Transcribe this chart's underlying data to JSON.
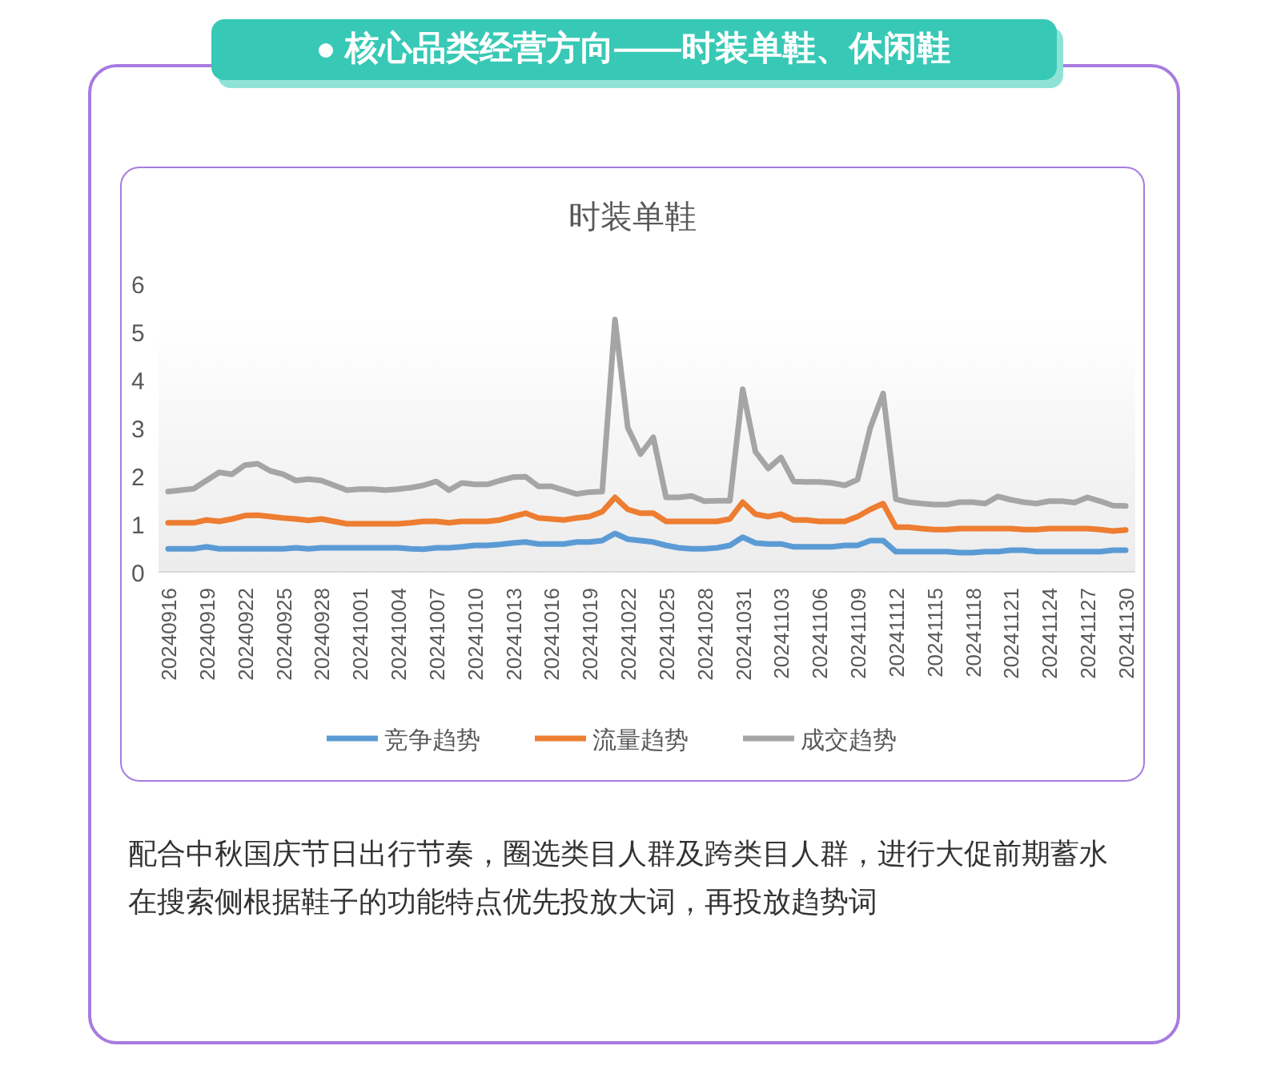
{
  "chart_data": {
    "type": "line",
    "subtitle": "核心品类经营方向——时装单鞋、休闲鞋",
    "title": "时装单鞋",
    "categories": [
      "20240916",
      null,
      null,
      "20240919",
      null,
      null,
      "20240922",
      null,
      null,
      "20240925",
      null,
      null,
      "20240928",
      null,
      null,
      "20241001",
      null,
      null,
      "20241004",
      null,
      null,
      "20241007",
      null,
      null,
      "20241010",
      null,
      null,
      "20241013",
      null,
      null,
      "20241016",
      null,
      null,
      "20241019",
      null,
      null,
      "20241022",
      null,
      null,
      "20241025",
      null,
      null,
      "20241028",
      null,
      null,
      "20241031",
      null,
      null,
      "20241103",
      null,
      null,
      "20241106",
      null,
      null,
      "20241109",
      null,
      null,
      "20241112",
      null,
      null,
      "20241115",
      null,
      null,
      "20241118",
      null,
      null,
      "20241121",
      null,
      null,
      "20241124",
      null,
      null,
      "20241127",
      null,
      null,
      "20241130"
    ],
    "series": [
      {
        "name": "竞争趋势",
        "color": "#5b9bd5",
        "values": [
          0.48,
          0.48,
          0.48,
          0.52,
          0.48,
          0.48,
          0.48,
          0.48,
          0.48,
          0.48,
          0.5,
          0.48,
          0.5,
          0.5,
          0.5,
          0.5,
          0.5,
          0.5,
          0.5,
          0.48,
          0.47,
          0.5,
          0.5,
          0.52,
          0.55,
          0.55,
          0.57,
          0.6,
          0.62,
          0.58,
          0.58,
          0.58,
          0.62,
          0.62,
          0.65,
          0.8,
          0.68,
          0.65,
          0.62,
          0.55,
          0.5,
          0.48,
          0.48,
          0.5,
          0.55,
          0.72,
          0.6,
          0.58,
          0.58,
          0.52,
          0.52,
          0.52,
          0.52,
          0.55,
          0.55,
          0.65,
          0.65,
          0.42,
          0.42,
          0.42,
          0.42,
          0.42,
          0.4,
          0.4,
          0.42,
          0.42,
          0.45,
          0.45,
          0.42,
          0.42,
          0.42,
          0.42,
          0.42,
          0.42,
          0.45,
          0.45
        ]
      },
      {
        "name": "流量趋势",
        "color": "#ed7d31",
        "values": [
          1.02,
          1.02,
          1.02,
          1.08,
          1.05,
          1.1,
          1.17,
          1.18,
          1.15,
          1.12,
          1.1,
          1.07,
          1.1,
          1.05,
          1.0,
          1.0,
          1.0,
          1.0,
          1.0,
          1.02,
          1.05,
          1.05,
          1.02,
          1.05,
          1.05,
          1.05,
          1.08,
          1.15,
          1.22,
          1.12,
          1.1,
          1.08,
          1.12,
          1.15,
          1.25,
          1.55,
          1.3,
          1.22,
          1.22,
          1.05,
          1.05,
          1.05,
          1.05,
          1.05,
          1.1,
          1.45,
          1.2,
          1.15,
          1.2,
          1.08,
          1.08,
          1.05,
          1.05,
          1.05,
          1.15,
          1.3,
          1.42,
          0.93,
          0.93,
          0.9,
          0.88,
          0.88,
          0.9,
          0.9,
          0.9,
          0.9,
          0.9,
          0.88,
          0.88,
          0.9,
          0.9,
          0.9,
          0.9,
          0.88,
          0.85,
          0.87
        ]
      },
      {
        "name": "成交趋势",
        "color": "#a5a5a5",
        "values": [
          1.67,
          1.7,
          1.73,
          1.9,
          2.07,
          2.03,
          2.22,
          2.25,
          2.1,
          2.03,
          1.9,
          1.93,
          1.9,
          1.8,
          1.7,
          1.72,
          1.72,
          1.7,
          1.72,
          1.75,
          1.8,
          1.88,
          1.7,
          1.85,
          1.82,
          1.82,
          1.9,
          1.97,
          1.98,
          1.78,
          1.78,
          1.7,
          1.62,
          1.66,
          1.67,
          5.25,
          3.0,
          2.45,
          2.8,
          1.55,
          1.55,
          1.58,
          1.47,
          1.48,
          1.48,
          3.8,
          2.5,
          2.15,
          2.38,
          1.88,
          1.87,
          1.87,
          1.85,
          1.8,
          1.92,
          3.0,
          3.71,
          1.51,
          1.45,
          1.42,
          1.4,
          1.4,
          1.45,
          1.45,
          1.42,
          1.57,
          1.5,
          1.45,
          1.42,
          1.47,
          1.47,
          1.44,
          1.55,
          1.47,
          1.38,
          1.37
        ]
      }
    ],
    "ylim": [
      0,
      6
    ],
    "yticks": [
      0,
      1,
      2,
      3,
      4,
      5,
      6
    ],
    "grid": false,
    "legend": "bottom",
    "marker": "none",
    "line_style": "solid",
    "annotations": [
      "配合中秋国庆节日出行节奏，圈选类目人群及跨类目人群，进行大促前期蓄水",
      "在搜索侧根据鞋子的功能特点优先投放大词，再投放趋势词"
    ]
  }
}
